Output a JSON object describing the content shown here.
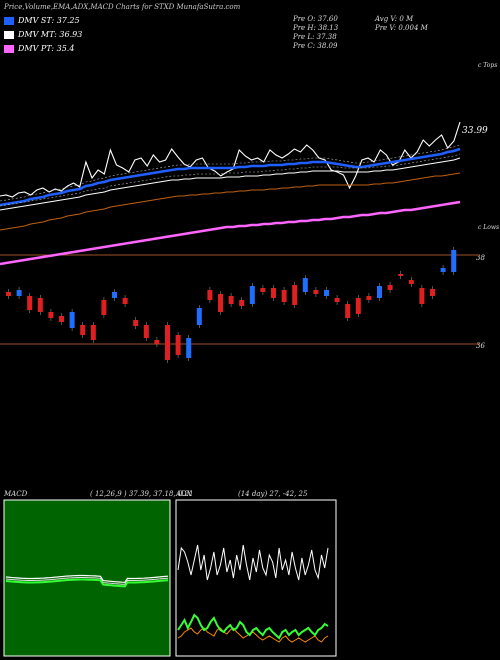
{
  "header": {
    "title": "Price,Volume,EMA,ADX,MACD Charts for STXD MunafaSutra.com"
  },
  "legend": [
    {
      "label": "DMV ST: 37.25",
      "color": "#1f5fff"
    },
    {
      "label": "DMV MT: 36.93",
      "color": "#ffffff"
    },
    {
      "label": "DMV PT: 35.4",
      "color": "#ff66ff"
    }
  ],
  "ohlc": {
    "open": "Pre   O: 37.60",
    "high": "Pre   H: 38.13",
    "low": "Pre   L: 37.38",
    "close": "Pre   C: 38.09",
    "avg_vol": "Avg V: 0  M",
    "pre_vol": "Pre   V: 0.004  M"
  },
  "labels": {
    "tops": "c Tops",
    "lows": "c Lows",
    "last_price": "33.99",
    "level_38": "38",
    "level_36": "36"
  },
  "panels": {
    "macd_title": "MACD",
    "macd_params": "( 12,26,9 ) 37.39, 37.18, 0.21",
    "adx_title": "ADX",
    "adx_params": "(14 day) 27, -42, 25"
  },
  "chart_data": [
    {
      "type": "line",
      "title": "",
      "series": [
        {
          "values": [
            196,
            195,
            197,
            193,
            192,
            195,
            190,
            188,
            192,
            189,
            191,
            186,
            183,
            187,
            162,
            178,
            170,
            174,
            150,
            165,
            168,
            172,
            160,
            158,
            166,
            155,
            162,
            160,
            149,
            157,
            164,
            167,
            160,
            158,
            168,
            171,
            176,
            172,
            169,
            150,
            156,
            160,
            158,
            162,
            150,
            155,
            158,
            154,
            149,
            152,
            145,
            150,
            158,
            160,
            170,
            172,
            175,
            188,
            176,
            160,
            158,
            162,
            150,
            155,
            165,
            162,
            150,
            158,
            152,
            140,
            146,
            140,
            135,
            148,
            141,
            122
          ]
        },
        {
          "values": [
            205,
            204,
            203,
            202,
            201,
            199,
            198,
            197,
            195,
            194,
            193,
            191,
            190,
            189,
            186,
            185,
            183,
            182,
            180,
            179,
            178,
            177,
            176,
            175,
            174,
            173,
            172,
            171,
            170,
            169,
            169,
            168,
            168,
            168,
            168,
            168,
            168,
            168,
            168,
            167,
            167,
            166,
            166,
            166,
            165,
            165,
            165,
            164,
            164,
            163,
            163,
            162,
            162,
            162,
            163,
            164,
            165,
            166,
            167,
            167,
            166,
            165,
            164,
            163,
            162,
            161,
            160,
            159,
            158,
            157,
            156,
            155,
            154,
            152,
            151,
            149
          ]
        },
        {
          "values": [
            210,
            209,
            208,
            207,
            206,
            205,
            204,
            203,
            202,
            201,
            200,
            199,
            198,
            197,
            195,
            194,
            193,
            192,
            190,
            189,
            188,
            187,
            186,
            185,
            184,
            183,
            182,
            181,
            180,
            180,
            179,
            179,
            178,
            178,
            178,
            178,
            178,
            177,
            177,
            177,
            176,
            176,
            176,
            175,
            175,
            174,
            174,
            173,
            173,
            172,
            172,
            171,
            171,
            171,
            171,
            171,
            172,
            172,
            172,
            172,
            172,
            171,
            171,
            170,
            170,
            169,
            168,
            167,
            166,
            165,
            164,
            163,
            162,
            161,
            160,
            158
          ]
        },
        {
          "values": [
            230,
            229,
            228,
            227,
            226,
            224,
            223,
            222,
            220,
            219,
            218,
            216,
            215,
            214,
            212,
            211,
            210,
            209,
            207,
            206,
            205,
            204,
            203,
            202,
            201,
            200,
            199,
            198,
            197,
            196,
            196,
            195,
            195,
            194,
            194,
            193,
            193,
            192,
            192,
            191,
            191,
            190,
            190,
            190,
            189,
            189,
            188,
            188,
            187,
            187,
            186,
            186,
            185,
            185,
            185,
            185,
            185,
            185,
            185,
            185,
            185,
            184,
            184,
            183,
            183,
            182,
            181,
            180,
            179,
            178,
            177,
            176,
            176,
            175,
            174,
            173
          ]
        },
        {
          "values": [
            264,
            263,
            262,
            261,
            260,
            259,
            258,
            257,
            256,
            255,
            254,
            253,
            252,
            251,
            250,
            249,
            248,
            247,
            246,
            245,
            244,
            243,
            242,
            241,
            240,
            239,
            238,
            237,
            236,
            235,
            234,
            233,
            232,
            231,
            230,
            229,
            228,
            227,
            227,
            226,
            226,
            225,
            225,
            224,
            224,
            223,
            223,
            222,
            222,
            221,
            221,
            220,
            220,
            219,
            219,
            218,
            217,
            217,
            216,
            215,
            215,
            214,
            213,
            213,
            212,
            211,
            210,
            210,
            209,
            208,
            207,
            206,
            205,
            204,
            203,
            202
          ]
        }
      ]
    },
    {
      "type": "bar",
      "title": "candles",
      "values": [
        {
          "o": 292,
          "c": 296,
          "up": false
        },
        {
          "o": 290,
          "c": 296,
          "up": true
        },
        {
          "o": 296,
          "c": 310,
          "up": false
        },
        {
          "o": 298,
          "c": 312,
          "up": false
        },
        {
          "o": 312,
          "c": 318,
          "up": false
        },
        {
          "o": 316,
          "c": 322,
          "up": false
        },
        {
          "o": 312,
          "c": 328,
          "up": true
        },
        {
          "o": 325,
          "c": 335,
          "up": false
        },
        {
          "o": 325,
          "c": 340,
          "up": false
        },
        {
          "o": 300,
          "c": 315,
          "up": false
        },
        {
          "o": 292,
          "c": 298,
          "up": true
        },
        {
          "o": 298,
          "c": 304,
          "up": false
        },
        {
          "o": 320,
          "c": 326,
          "up": false
        },
        {
          "o": 325,
          "c": 338,
          "up": false
        },
        {
          "o": 340,
          "c": 344,
          "up": false
        },
        {
          "o": 325,
          "c": 360,
          "up": false
        },
        {
          "o": 335,
          "c": 355,
          "up": false
        },
        {
          "o": 338,
          "c": 358,
          "up": true
        },
        {
          "o": 308,
          "c": 325,
          "up": true
        },
        {
          "o": 290,
          "c": 300,
          "up": false
        },
        {
          "o": 294,
          "c": 312,
          "up": false
        },
        {
          "o": 296,
          "c": 304,
          "up": false
        },
        {
          "o": 300,
          "c": 306,
          "up": false
        },
        {
          "o": 286,
          "c": 304,
          "up": true
        },
        {
          "o": 288,
          "c": 292,
          "up": false
        },
        {
          "o": 288,
          "c": 298,
          "up": false
        },
        {
          "o": 290,
          "c": 302,
          "up": false
        },
        {
          "o": 285,
          "c": 305,
          "up": false
        },
        {
          "o": 278,
          "c": 292,
          "up": true
        },
        {
          "o": 290,
          "c": 294,
          "up": false
        },
        {
          "o": 290,
          "c": 296,
          "up": true
        },
        {
          "o": 298,
          "c": 302,
          "up": false
        },
        {
          "o": 304,
          "c": 318,
          "up": false
        },
        {
          "o": 298,
          "c": 314,
          "up": false
        },
        {
          "o": 296,
          "c": 300,
          "up": false
        },
        {
          "o": 286,
          "c": 298,
          "up": true
        },
        {
          "o": 285,
          "c": 290,
          "up": false
        },
        {
          "o": 274,
          "c": 276,
          "up": false
        },
        {
          "o": 280,
          "c": 284,
          "up": false
        },
        {
          "o": 288,
          "c": 304,
          "up": false
        },
        {
          "o": 289,
          "c": 296,
          "up": false
        },
        {
          "o": 268,
          "c": 272,
          "up": true
        },
        {
          "o": 250,
          "c": 272,
          "up": true
        }
      ]
    }
  ]
}
